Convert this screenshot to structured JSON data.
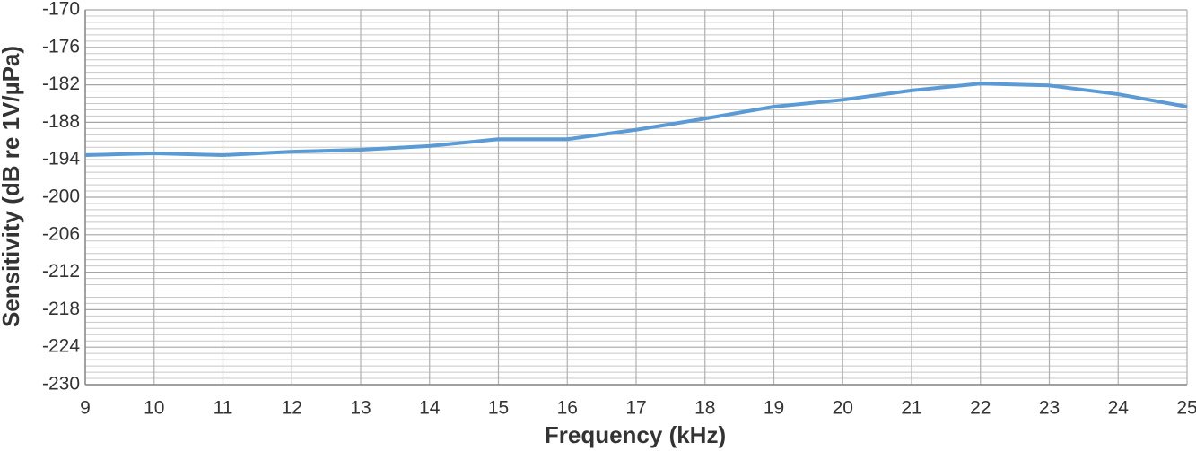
{
  "chart_data": {
    "type": "line",
    "x_label": "Frequency (kHz)",
    "y_label": "Sensitivity (dB re 1V/µPa)",
    "x": [
      9,
      10,
      11,
      12,
      13,
      14,
      15,
      16,
      17,
      18,
      19,
      20,
      21,
      22,
      23,
      24,
      25
    ],
    "series": [
      {
        "name": "Sensitivity",
        "color": "#5b9bd5",
        "values": [
          -193.25,
          -192.97,
          -193.25,
          -192.7,
          -192.4,
          -191.8,
          -190.7,
          -190.7,
          -189.2,
          -187.4,
          -185.5,
          -184.4,
          -182.9,
          -181.8,
          -182.1,
          -183.5,
          -185.5
        ]
      }
    ],
    "xlim": [
      9,
      25
    ],
    "xticks": [
      9,
      10,
      11,
      12,
      13,
      14,
      15,
      16,
      17,
      18,
      19,
      20,
      21,
      22,
      23,
      24,
      25
    ],
    "ylim": [
      -230,
      -170
    ],
    "yticks": [
      -230,
      -224,
      -218,
      -212,
      -206,
      -200,
      -194,
      -188,
      -182,
      -176,
      -170
    ],
    "minor_yticks": [
      -229,
      -228,
      -227,
      -226,
      -225,
      -223,
      -222,
      -221,
      -220,
      -219,
      -217,
      -216,
      -215,
      -214,
      -213,
      -211,
      -210,
      -209,
      -208,
      -207,
      -205,
      -204,
      -203,
      -202,
      -201,
      -199,
      -198,
      -197,
      -196,
      -195,
      -193,
      -192,
      -191,
      -190,
      -189,
      -187,
      -186,
      -185,
      -184,
      -183,
      -181,
      -180,
      -179,
      -178,
      -177,
      -175,
      -174,
      -173,
      -172,
      -171
    ],
    "grid": true
  }
}
